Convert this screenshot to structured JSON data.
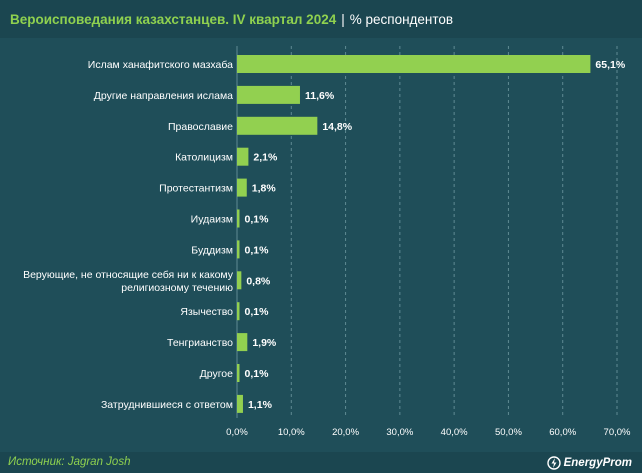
{
  "header": {
    "title": "Вероисповедания казахстанцев. IV квартал 2024",
    "separator": "|",
    "subtitle": "% респондентов"
  },
  "footer": {
    "source_label": "Источник: ",
    "source_name": "Jagran Josh",
    "brand": "EnergyProm",
    "brand_icon": "energyprom-logo-icon"
  },
  "colors": {
    "bar": "#92d050",
    "background": "#1f4e59",
    "band": "#1b4650",
    "accent": "#8fd14f",
    "text": "#ffffff",
    "grid": "#5f8a93"
  },
  "chart_data": {
    "type": "bar",
    "orientation": "horizontal",
    "categories": [
      "Ислам ханафитского мазхаба",
      "Другие направления ислама",
      "Православие",
      "Католицизм",
      "Протестантизм",
      "Иудаизм",
      "Буддизм",
      "Верующие, не относящие себя ни к какому религиозному течению",
      "Язычество",
      "Тенгрианство",
      "Другое",
      "Затруднившиеся с ответом"
    ],
    "category_lines": [
      [
        "Ислам ханафитского мазхаба"
      ],
      [
        "Другие направления ислама"
      ],
      [
        "Православие"
      ],
      [
        "Католицизм"
      ],
      [
        "Протестантизм"
      ],
      [
        "Иудаизм"
      ],
      [
        "Буддизм"
      ],
      [
        "Верующие, не относящие себя ни к какому",
        "религиозному течению"
      ],
      [
        "Язычество"
      ],
      [
        "Тенгрианство"
      ],
      [
        "Другое"
      ],
      [
        "Затруднившиеся с ответом"
      ]
    ],
    "values": [
      65.1,
      11.6,
      14.8,
      2.1,
      1.8,
      0.1,
      0.1,
      0.8,
      0.1,
      1.9,
      0.1,
      1.1
    ],
    "value_labels": [
      "65,1%",
      "11,6%",
      "14,8%",
      "2,1%",
      "1,8%",
      "0,1%",
      "0,1%",
      "0,8%",
      "0,1%",
      "1,9%",
      "0,1%",
      "1,1%"
    ],
    "xlim": [
      0,
      70
    ],
    "xticks": [
      0,
      10,
      20,
      30,
      40,
      50,
      60,
      70
    ],
    "xtick_labels": [
      "0,0%",
      "10,0%",
      "20,0%",
      "30,0%",
      "40,0%",
      "50,0%",
      "60,0%",
      "70,0%"
    ],
    "grid": "vertical-dashed",
    "legend": "none"
  }
}
